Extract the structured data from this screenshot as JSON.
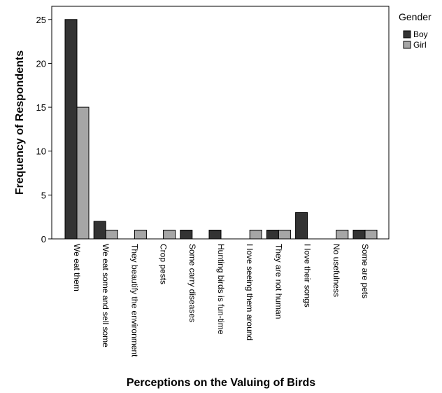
{
  "chart_data": {
    "type": "bar",
    "title": "",
    "xlabel": "Perceptions on the Valuing of Birds",
    "ylabel": "Frequency of Respondents",
    "ylim": [
      0,
      26.5
    ],
    "yticks": [
      0,
      5,
      10,
      15,
      20,
      25
    ],
    "grid": false,
    "legend": {
      "title": "Gender",
      "position": "right"
    },
    "categories": [
      "We eat them",
      "We eat some and sell some",
      "They beautify the environment",
      "Crop pests",
      "Some carry diseases",
      "Hunting birds is fun-time",
      "I love seeing them around",
      "They are not human",
      "I love their songs",
      "No usefulness",
      "Some are pets"
    ],
    "series": [
      {
        "name": "Boy",
        "color": "#333333",
        "values": [
          25,
          2,
          0,
          0,
          1,
          1,
          0,
          1,
          3,
          0,
          1
        ]
      },
      {
        "name": "Girl",
        "color": "#a6a6a6",
        "values": [
          15,
          1,
          1,
          1,
          0,
          0,
          1,
          1,
          0,
          1,
          1
        ]
      }
    ]
  }
}
